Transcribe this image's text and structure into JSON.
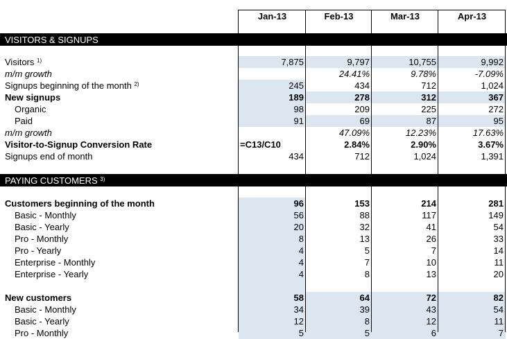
{
  "columns": [
    "Jan-13",
    "Feb-13",
    "Mar-13",
    "Apr-13"
  ],
  "sections": {
    "visitors": "VISITORS & SIGNUPS",
    "paying": "PAYING CUSTOMERS",
    "paying_sup": "3)"
  },
  "rows": [
    {
      "label": "Visitors",
      "sup": "1)",
      "values": [
        "7,875",
        "9,797",
        "10,755",
        "9,992"
      ],
      "style": "",
      "shade": [
        1,
        1,
        1,
        1
      ]
    },
    {
      "label": "m/m growth",
      "sup": "",
      "values": [
        "",
        "24.41%",
        "9.78%",
        "-7.09%"
      ],
      "style": "it",
      "shade": [
        0,
        0,
        0,
        0
      ]
    },
    {
      "label": "Signups beginning of the month",
      "sup": "2)",
      "values": [
        "245",
        "434",
        "712",
        "1,024"
      ],
      "style": "",
      "shade": [
        1,
        0,
        0,
        0
      ]
    },
    {
      "label": "New signups",
      "sup": "",
      "values": [
        "189",
        "278",
        "312",
        "367"
      ],
      "style": "b",
      "shade": [
        1,
        1,
        1,
        1
      ]
    },
    {
      "label": "Organic",
      "sup": "",
      "values": [
        "98",
        "209",
        "225",
        "272"
      ],
      "style": "indent",
      "shade": [
        1,
        0,
        0,
        0
      ]
    },
    {
      "label": "Paid",
      "sup": "",
      "values": [
        "91",
        "69",
        "87",
        "95"
      ],
      "style": "indent",
      "shade": [
        1,
        1,
        1,
        1
      ]
    },
    {
      "label": "m/m growth",
      "sup": "",
      "values": [
        "",
        "47.09%",
        "12.23%",
        "17.63%"
      ],
      "style": "it",
      "shade": [
        0,
        0,
        0,
        0
      ]
    },
    {
      "label": "Visitor-to-Signup Conversion Rate",
      "sup": "",
      "values": [
        "=C13/C10",
        "2.84%",
        "2.90%",
        "3.67%"
      ],
      "style": "b",
      "shade": [
        0,
        0,
        0,
        0
      ]
    },
    {
      "label": "Signups end of month",
      "sup": "",
      "values": [
        "434",
        "712",
        "1,024",
        "1,391"
      ],
      "style": "",
      "shade": [
        0,
        0,
        0,
        0
      ]
    }
  ],
  "paying_rows": [
    {
      "label": "Customers beginning of the month",
      "values": [
        "96",
        "153",
        "214",
        "281"
      ],
      "style": "b",
      "shade": [
        1,
        0,
        0,
        0
      ]
    },
    {
      "label": "Basic - Monthly",
      "values": [
        "56",
        "88",
        "117",
        "149"
      ],
      "style": "indent",
      "shade": [
        1,
        0,
        0,
        0
      ]
    },
    {
      "label": "Basic - Yearly",
      "values": [
        "20",
        "32",
        "41",
        "54"
      ],
      "style": "indent",
      "shade": [
        1,
        0,
        0,
        0
      ]
    },
    {
      "label": "Pro - Monthly",
      "values": [
        "8",
        "13",
        "26",
        "33"
      ],
      "style": "indent",
      "shade": [
        1,
        0,
        0,
        0
      ]
    },
    {
      "label": "Pro - Yearly",
      "values": [
        "4",
        "5",
        "7",
        "14"
      ],
      "style": "indent",
      "shade": [
        1,
        0,
        0,
        0
      ]
    },
    {
      "label": "Enterprise - Monthly",
      "values": [
        "4",
        "7",
        "10",
        "11"
      ],
      "style": "indent",
      "shade": [
        1,
        0,
        0,
        0
      ]
    },
    {
      "label": "Enterprise - Yearly",
      "values": [
        "4",
        "8",
        "13",
        "20"
      ],
      "style": "indent",
      "shade": [
        1,
        0,
        0,
        0
      ]
    },
    {
      "label": "",
      "values": [
        "",
        "",
        "",
        ""
      ],
      "style": "",
      "shade": [
        1,
        0,
        0,
        0
      ]
    },
    {
      "label": "New customers",
      "values": [
        "58",
        "64",
        "72",
        "82"
      ],
      "style": "b",
      "shade": [
        1,
        1,
        1,
        1
      ]
    },
    {
      "label": "Basic - Monthly",
      "values": [
        "34",
        "39",
        "43",
        "54"
      ],
      "style": "indent",
      "shade": [
        1,
        1,
        1,
        1
      ]
    },
    {
      "label": "Basic - Yearly",
      "values": [
        "12",
        "8",
        "12",
        "11"
      ],
      "style": "indent",
      "shade": [
        1,
        1,
        1,
        1
      ]
    },
    {
      "label": "Pro - Monthly",
      "values": [
        "5",
        "5",
        "6",
        "7"
      ],
      "style": "indent",
      "shade": [
        1,
        1,
        1,
        1
      ]
    }
  ],
  "colors": {
    "shade": "#dce6f1",
    "section_bg": "#000000",
    "section_text": "#ffffff"
  }
}
